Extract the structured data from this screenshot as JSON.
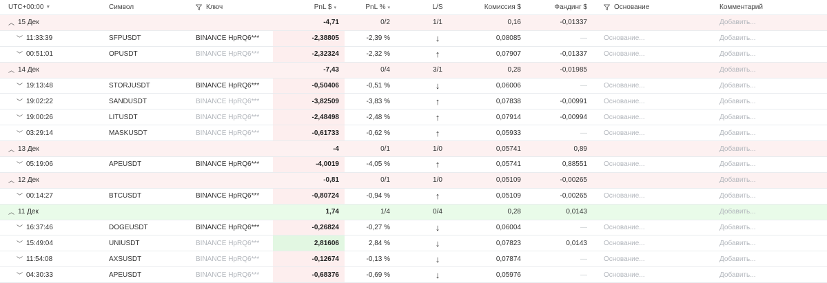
{
  "header": {
    "tz": "UTC+00:00",
    "symbol": "Символ",
    "key": "Ключ",
    "pnl": "PnL $",
    "pnl_pct": "PnL %",
    "ls": "L/S",
    "commission": "Комиссия $",
    "funding": "Фандинг $",
    "basis": "Основание",
    "comment": "Комментарий"
  },
  "rows": [
    {
      "type": "group",
      "sign": "neg",
      "label": "15 Дек",
      "pnl": "-4,71",
      "pnl_pct": "0/2",
      "ls": "1/1",
      "commission": "0,16",
      "funding": "-0,01337",
      "add": "Добавить..."
    },
    {
      "type": "trade",
      "time": "11:33:39",
      "symbol": "SFPUSDT",
      "key": "BINANCE HpRQ6***",
      "key_muted": false,
      "pnl": "-2,38805",
      "pnl_sign": "neg",
      "pnl_pct": "-2,39 %",
      "dir": "down",
      "commission": "0,08085",
      "funding": "—",
      "basis": "Основание...",
      "add": "Добавить..."
    },
    {
      "type": "trade",
      "time": "00:51:01",
      "symbol": "OPUSDT",
      "key": "BINANCE HpRQ6***",
      "key_muted": true,
      "pnl": "-2,32324",
      "pnl_sign": "neg",
      "pnl_pct": "-2,32 %",
      "dir": "up",
      "commission": "0,07907",
      "funding": "-0,01337",
      "basis": "Основание...",
      "add": "Добавить..."
    },
    {
      "type": "group",
      "sign": "neg",
      "label": "14 Дек",
      "pnl": "-7,43",
      "pnl_pct": "0/4",
      "ls": "3/1",
      "commission": "0,28",
      "funding": "-0,01985",
      "add": "Добавить..."
    },
    {
      "type": "trade",
      "time": "19:13:48",
      "symbol": "STORJUSDT",
      "key": "BINANCE HpRQ6***",
      "key_muted": false,
      "pnl": "-0,50406",
      "pnl_sign": "neg",
      "pnl_pct": "-0,51 %",
      "dir": "down",
      "commission": "0,06006",
      "funding": "—",
      "basis": "Основание...",
      "add": "Добавить..."
    },
    {
      "type": "trade",
      "time": "19:02:22",
      "symbol": "SANDUSDT",
      "key": "BINANCE HpRQ6***",
      "key_muted": true,
      "pnl": "-3,82509",
      "pnl_sign": "neg",
      "pnl_pct": "-3,83 %",
      "dir": "up",
      "commission": "0,07838",
      "funding": "-0,00991",
      "basis": "Основание...",
      "add": "Добавить..."
    },
    {
      "type": "trade",
      "time": "19:00:26",
      "symbol": "LITUSDT",
      "key": "BINANCE HpRQ6***",
      "key_muted": true,
      "pnl": "-2,48498",
      "pnl_sign": "neg",
      "pnl_pct": "-2,48 %",
      "dir": "up",
      "commission": "0,07914",
      "funding": "-0,00994",
      "basis": "Основание...",
      "add": "Добавить..."
    },
    {
      "type": "trade",
      "time": "03:29:14",
      "symbol": "MASKUSDT",
      "key": "BINANCE HpRQ6***",
      "key_muted": true,
      "pnl": "-0,61733",
      "pnl_sign": "neg",
      "pnl_pct": "-0,62 %",
      "dir": "up",
      "commission": "0,05933",
      "funding": "—",
      "basis": "Основание...",
      "add": "Добавить..."
    },
    {
      "type": "group",
      "sign": "neg",
      "label": "13 Дек",
      "pnl": "-4",
      "pnl_pct": "0/1",
      "ls": "1/0",
      "commission": "0,05741",
      "funding": "0,89",
      "add": "Добавить..."
    },
    {
      "type": "trade",
      "time": "05:19:06",
      "symbol": "APEUSDT",
      "key": "BINANCE HpRQ6***",
      "key_muted": false,
      "pnl": "-4,0019",
      "pnl_sign": "neg",
      "pnl_pct": "-4,05 %",
      "dir": "up",
      "commission": "0,05741",
      "funding": "0,88551",
      "basis": "Основание...",
      "add": "Добавить..."
    },
    {
      "type": "group",
      "sign": "neg",
      "label": "12 Дек",
      "pnl": "-0,81",
      "pnl_pct": "0/1",
      "ls": "1/0",
      "commission": "0,05109",
      "funding": "-0,00265",
      "add": "Добавить..."
    },
    {
      "type": "trade",
      "time": "00:14:27",
      "symbol": "BTCUSDT",
      "key": "BINANCE HpRQ6***",
      "key_muted": false,
      "pnl": "-0,80724",
      "pnl_sign": "neg",
      "pnl_pct": "-0,94 %",
      "dir": "up",
      "commission": "0,05109",
      "funding": "-0,00265",
      "basis": "Основание...",
      "add": "Добавить..."
    },
    {
      "type": "group",
      "sign": "pos",
      "label": "11 Дек",
      "pnl": "1,74",
      "pnl_pct": "1/4",
      "ls": "0/4",
      "commission": "0,28",
      "funding": "0,0143",
      "add": "Добавить..."
    },
    {
      "type": "trade",
      "time": "16:37:46",
      "symbol": "DOGEUSDT",
      "key": "BINANCE HpRQ6***",
      "key_muted": false,
      "pnl": "-0,26824",
      "pnl_sign": "neg",
      "pnl_pct": "-0,27 %",
      "dir": "down",
      "commission": "0,06004",
      "funding": "—",
      "basis": "Основание...",
      "add": "Добавить..."
    },
    {
      "type": "trade",
      "time": "15:49:04",
      "symbol": "UNIUSDT",
      "key": "BINANCE HpRQ6***",
      "key_muted": true,
      "pnl": "2,81606",
      "pnl_sign": "pos",
      "pnl_pct": "2,84 %",
      "dir": "down",
      "commission": "0,07823",
      "funding": "0,0143",
      "basis": "Основание...",
      "add": "Добавить..."
    },
    {
      "type": "trade",
      "time": "11:54:08",
      "symbol": "AXSUSDT",
      "key": "BINANCE HpRQ6***",
      "key_muted": true,
      "pnl": "-0,12674",
      "pnl_sign": "neg",
      "pnl_pct": "-0,13 %",
      "dir": "down",
      "commission": "0,07874",
      "funding": "—",
      "basis": "Основание...",
      "add": "Добавить..."
    },
    {
      "type": "trade",
      "time": "04:30:33",
      "symbol": "APEUSDT",
      "key": "BINANCE HpRQ6***",
      "key_muted": true,
      "pnl": "-0,68376",
      "pnl_sign": "neg",
      "pnl_pct": "-0,69 %",
      "dir": "down",
      "commission": "0,05976",
      "funding": "—",
      "basis": "Основание...",
      "add": "Добавить..."
    }
  ]
}
